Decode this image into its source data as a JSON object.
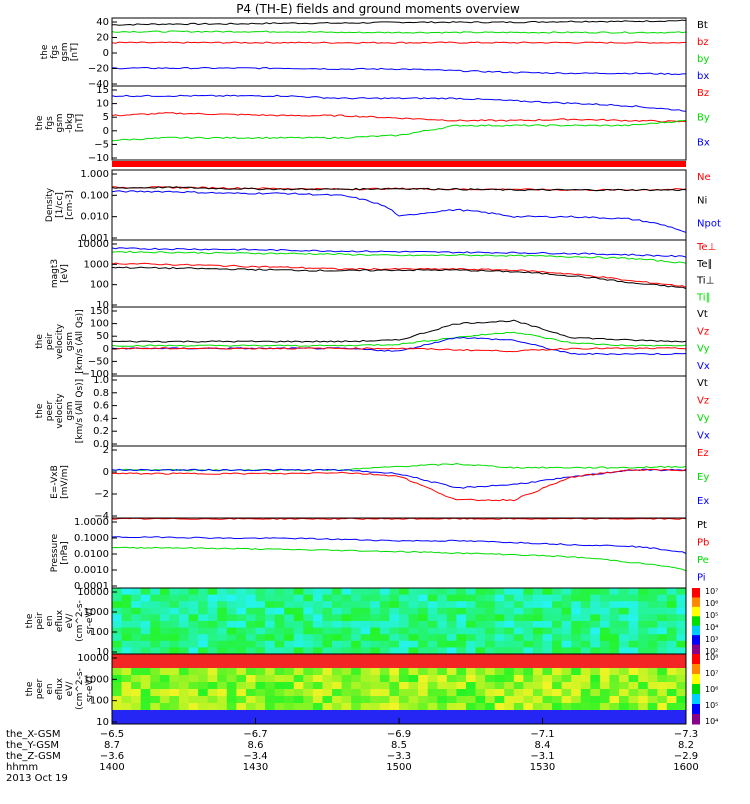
{
  "title": "P4 (TH-E) fields and ground moments overview",
  "colors": {
    "black": "#000000",
    "red": "#ff0000",
    "green": "#00dd00",
    "blue": "#0000ff"
  },
  "chart_data": [
    {
      "type": "line",
      "ylabel": [
        "the",
        "fgs",
        "gsm",
        "[nT]"
      ],
      "yticks": [
        "40",
        "20",
        "0",
        "−20",
        "−40"
      ],
      "ylim": [
        -40,
        40
      ],
      "legend": [
        {
          "label": "Bt",
          "color": "black"
        },
        {
          "label": "bz",
          "color": "red"
        },
        {
          "label": "by",
          "color": "green"
        },
        {
          "label": "bx",
          "color": "blue"
        }
      ],
      "series": [
        {
          "color": "black",
          "values": [
            32,
            33,
            33,
            34,
            34,
            35,
            35,
            35,
            36,
            36,
            37
          ]
        },
        {
          "color": "red",
          "values": [
            11,
            11,
            11,
            11,
            11,
            11,
            11,
            11,
            11,
            11,
            11
          ]
        },
        {
          "color": "green",
          "values": [
            24,
            24,
            24,
            24,
            23,
            23,
            23,
            23,
            23,
            23,
            23
          ]
        },
        {
          "color": "blue",
          "values": [
            -19,
            -19,
            -19,
            -19,
            -20,
            -20,
            -22,
            -24,
            -25,
            -25,
            -26
          ]
        }
      ]
    },
    {
      "type": "line",
      "ylabel": [
        "the",
        "fgs",
        "gsm",
        "-bkg",
        "[nT]"
      ],
      "yticks": [
        "15",
        "10",
        "5",
        "0",
        "−5",
        "−10"
      ],
      "ylim": [
        -15,
        15
      ],
      "legend": [
        {
          "label": "Bz",
          "color": "red"
        },
        {
          "label": "By",
          "color": "green"
        },
        {
          "label": "Bx",
          "color": "blue"
        }
      ],
      "series": [
        {
          "color": "red",
          "values": [
            3,
            4,
            3.5,
            3,
            3,
            2,
            1,
            1,
            1.5,
            1,
            0.5
          ]
        },
        {
          "color": "green",
          "values": [
            -7,
            -6,
            -6,
            -6,
            -6,
            -5,
            -1,
            -1,
            -1,
            -1,
            1
          ]
        },
        {
          "color": "blue",
          "values": [
            11,
            11,
            11,
            11,
            10,
            10,
            10,
            9,
            8,
            7,
            5
          ]
        }
      ]
    },
    {
      "type": "line",
      "ylabel": [
        "Density",
        "[1/cc]",
        "[cm-3]"
      ],
      "yticks": [
        "1.000",
        "0.100",
        "0.010",
        "0.001"
      ],
      "log": true,
      "ylim": [
        0.001,
        1
      ],
      "legend": [
        {
          "label": "Ne",
          "color": "red"
        },
        {
          "label": "Ni",
          "color": "black"
        },
        {
          "label": "Npot",
          "color": "blue"
        }
      ],
      "series": [
        {
          "color": "red",
          "values": [
            0.18,
            0.18,
            0.17,
            0.16,
            0.15,
            0.16,
            0.15,
            0.15,
            0.14,
            0.14,
            0.15
          ]
        },
        {
          "color": "black",
          "values": [
            0.17,
            0.18,
            0.16,
            0.15,
            0.15,
            0.16,
            0.15,
            0.14,
            0.14,
            0.14,
            0.14
          ]
        },
        {
          "color": "blue",
          "values": [
            0.12,
            0.12,
            0.1,
            0.1,
            0.08,
            0.01,
            0.02,
            0.01,
            0.01,
            0.008,
            0.002
          ]
        }
      ]
    },
    {
      "type": "line",
      "ylabel": [
        "magt3",
        "[eV]"
      ],
      "yticks": [
        "10000",
        "1000",
        "100",
        "10"
      ],
      "log": true,
      "ylim": [
        10,
        10000
      ],
      "legend": [
        {
          "label": "Te⊥",
          "color": "red"
        },
        {
          "label": "Te∥",
          "color": "black"
        },
        {
          "label": "Ti⊥",
          "color": "black"
        },
        {
          "label": "Ti∥",
          "color": "green"
        }
      ],
      "series": [
        {
          "color": "blue",
          "values": [
            4200,
            4000,
            3800,
            3500,
            3200,
            3000,
            2800,
            2700,
            2500,
            2200,
            1800
          ]
        },
        {
          "color": "green",
          "values": [
            3000,
            2800,
            2600,
            2500,
            2300,
            2000,
            2100,
            2000,
            1800,
            1500,
            900
          ]
        },
        {
          "color": "red",
          "values": [
            900,
            800,
            700,
            600,
            500,
            500,
            500,
            450,
            300,
            150,
            80
          ]
        },
        {
          "color": "black",
          "values": [
            600,
            550,
            500,
            450,
            420,
            450,
            450,
            380,
            250,
            120,
            70
          ]
        }
      ]
    },
    {
      "type": "line",
      "ylabel": [
        "the",
        "peir",
        "velocity",
        "gsm",
        "[km/s (All Qs)]"
      ],
      "yticks": [
        "150",
        "100",
        "50",
        "0",
        "−50",
        "−100"
      ],
      "ylim": [
        -100,
        150
      ],
      "legend": [
        {
          "label": "Vt",
          "color": "black"
        },
        {
          "label": "Vz",
          "color": "red"
        },
        {
          "label": "Vy",
          "color": "green"
        },
        {
          "label": "Vx",
          "color": "blue"
        }
      ],
      "series": [
        {
          "color": "black",
          "values": [
            25,
            25,
            25,
            25,
            25,
            30,
            90,
            100,
            40,
            30,
            25
          ]
        },
        {
          "color": "green",
          "values": [
            10,
            10,
            10,
            10,
            10,
            15,
            40,
            60,
            20,
            10,
            10
          ]
        },
        {
          "color": "blue",
          "values": [
            0,
            0,
            0,
            0,
            0,
            -10,
            40,
            30,
            -20,
            -20,
            -20
          ]
        },
        {
          "color": "red",
          "values": [
            0,
            0,
            0,
            0,
            0,
            0,
            -5,
            -10,
            0,
            0,
            0
          ]
        }
      ]
    },
    {
      "type": "line",
      "ylabel": [
        "the",
        "peer",
        "velocity",
        "gsm",
        "[km/s (All Qs)]"
      ],
      "yticks": [
        "1.0",
        "0.8",
        "0.6",
        "0.4",
        "0.2",
        "0.0"
      ],
      "ylim": [
        0,
        1
      ],
      "legend": [
        {
          "label": "Vt",
          "color": "black"
        },
        {
          "label": "Vz",
          "color": "red"
        },
        {
          "label": "Vy",
          "color": "green"
        },
        {
          "label": "Vx",
          "color": "blue"
        }
      ],
      "series": []
    },
    {
      "type": "line",
      "ylabel": [
        "E=-VxB",
        "[mV/m]"
      ],
      "yticks": [
        "2",
        "0",
        "−2",
        "−4"
      ],
      "ylim": [
        -4,
        2
      ],
      "legend": [
        {
          "label": "Ez",
          "color": "red"
        },
        {
          "label": "Ey",
          "color": "green"
        },
        {
          "label": "Ex",
          "color": "blue"
        }
      ],
      "series": [
        {
          "color": "green",
          "values": [
            0,
            0,
            0,
            0,
            0,
            0.3,
            0.5,
            0.2,
            0.2,
            0.2,
            0.3
          ]
        },
        {
          "color": "blue",
          "values": [
            0,
            0,
            0,
            0,
            0,
            -0.3,
            -1.5,
            -1.2,
            -0.6,
            0,
            0
          ]
        },
        {
          "color": "red",
          "values": [
            -0.3,
            -0.3,
            -0.3,
            -0.3,
            -0.2,
            -0.5,
            -2.5,
            -2.5,
            -0.6,
            0,
            0
          ]
        }
      ]
    },
    {
      "type": "line",
      "ylabel": [
        "Pressure",
        "[nPa]"
      ],
      "yticks": [
        "1.0000",
        "0.1000",
        "0.0100",
        "0.0010",
        "0.0001"
      ],
      "log": true,
      "ylim": [
        0.0001,
        1
      ],
      "legend": [
        {
          "label": "Pt",
          "color": "black"
        },
        {
          "label": "Pb",
          "color": "red"
        },
        {
          "label": "Pe",
          "color": "green"
        },
        {
          "label": "Pi",
          "color": "blue"
        }
      ],
      "series": [
        {
          "color": "red",
          "values": [
            0.9,
            0.9,
            0.9,
            0.9,
            0.9,
            0.9,
            0.9,
            0.9,
            0.9,
            0.9,
            0.9
          ]
        },
        {
          "color": "blue",
          "values": [
            0.08,
            0.08,
            0.07,
            0.07,
            0.06,
            0.05,
            0.05,
            0.04,
            0.03,
            0.025,
            0.01
          ]
        },
        {
          "color": "green",
          "values": [
            0.02,
            0.02,
            0.018,
            0.016,
            0.014,
            0.012,
            0.01,
            0.008,
            0.006,
            0.003,
            0.001
          ]
        }
      ]
    },
    {
      "type": "heatmap",
      "ylabel": [
        "the",
        "peir",
        "en",
        "eflux",
        "eV/",
        "(cm^2-s-",
        "sr-eV)"
      ],
      "yticks": [
        "10000",
        "1000",
        "100",
        "10"
      ],
      "colorbar": [
        "10⁷",
        "10⁶",
        "10⁵",
        "10⁴",
        "10³",
        "10²"
      ]
    },
    {
      "type": "heatmap",
      "ylabel": [
        "the",
        "peer",
        "en",
        "eflux",
        "eV/",
        "(cm^2-s-",
        "sr-eV)"
      ],
      "yticks": [
        "10000",
        "1000",
        "100",
        "10"
      ],
      "colorbar": [
        "10⁸",
        "10⁷",
        "10⁶",
        "10⁵",
        "10⁴"
      ]
    }
  ],
  "xaxis": {
    "row_labels": [
      "the_X-GSM",
      "the_Y-GSM",
      "the_Z-GSM",
      "hhmm",
      "2013 Oct 19"
    ],
    "columns": [
      [
        "−6.5",
        "8.7",
        "−3.6",
        "1400"
      ],
      [
        "−6.7",
        "8.6",
        "−3.4",
        "1430"
      ],
      [
        "−6.9",
        "8.5",
        "−3.3",
        "1500"
      ],
      [
        "−7.1",
        "8.4",
        "−3.1",
        "1530"
      ],
      [
        "−7.3",
        "8.2",
        "−2.9",
        "1600"
      ]
    ]
  }
}
